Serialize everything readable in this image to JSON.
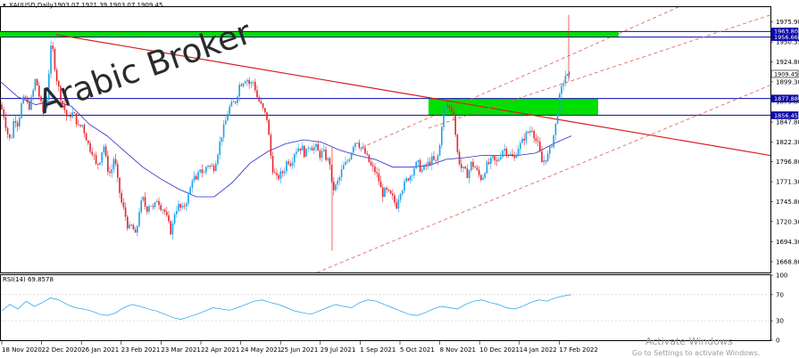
{
  "header": {
    "symbol": "XAUUSD,Daily",
    "ohlc": "1903.07 1921.39 1903.07 1909.45"
  },
  "watermark": "Arabic Broker",
  "activate": {
    "title": "Activate Windows",
    "subtitle": "Go to Settings to activate Windows."
  },
  "rsi_label": "RSI(14) 69.8578",
  "chart_data": {
    "type": "candlestick",
    "symbol": "XAUUSD",
    "timeframe": "Daily",
    "ylim": [
      1655,
      1995
    ],
    "y_ticks": [
      1975.9,
      1950.35,
      1924.8,
      1899.3,
      1873.8,
      1847.8,
      1822.3,
      1796.8,
      1771.3,
      1745.8,
      1720.3,
      1694.3,
      1668.8
    ],
    "x_labels": [
      "18 Nov 2020",
      "22 Dec 2020",
      "26 Jan 2021",
      "23 Feb 2021",
      "23 Mar 2021",
      "22 Apr 2021",
      "24 May 2021",
      "25 Jun 2021",
      "29 Jul 2021",
      "1 Sep 2021",
      "5 Oct 2021",
      "8 Nov 2021",
      "10 Dec 2021",
      "14 Jan 2022",
      "17 Feb 2022"
    ],
    "price_markers": [
      {
        "value": 1963.8,
        "style": "dark"
      },
      {
        "value": 1956.66,
        "style": "dark"
      },
      {
        "value": 1909.45,
        "style": "light"
      },
      {
        "value": 1877.88,
        "style": "dark"
      },
      {
        "value": 1856.45,
        "style": "dark"
      }
    ],
    "horizontal_levels": [
      1963.8,
      1956.66,
      1877.88,
      1856.45
    ],
    "supply_zones": [
      [
        1956.66,
        1963.8
      ],
      [
        1856.45,
        1877.88
      ]
    ],
    "close_path": [
      [
        0,
        1870
      ],
      [
        4,
        1858
      ],
      [
        8,
        1835
      ],
      [
        12,
        1822
      ],
      [
        16,
        1855
      ],
      [
        20,
        1845
      ],
      [
        24,
        1870
      ],
      [
        28,
        1880
      ],
      [
        32,
        1865
      ],
      [
        36,
        1880
      ],
      [
        40,
        1905
      ],
      [
        44,
        1880
      ],
      [
        48,
        1860
      ],
      [
        52,
        1870
      ],
      [
        56,
        1930
      ],
      [
        58,
        1952
      ],
      [
        60,
        1930
      ],
      [
        64,
        1900
      ],
      [
        68,
        1880
      ],
      [
        72,
        1865
      ],
      [
        76,
        1850
      ],
      [
        80,
        1860
      ],
      [
        84,
        1855
      ],
      [
        88,
        1840
      ],
      [
        92,
        1845
      ],
      [
        96,
        1830
      ],
      [
        100,
        1815
      ],
      [
        104,
        1810
      ],
      [
        108,
        1790
      ],
      [
        112,
        1800
      ],
      [
        116,
        1820
      ],
      [
        120,
        1790
      ],
      [
        124,
        1780
      ],
      [
        128,
        1805
      ],
      [
        132,
        1770
      ],
      [
        136,
        1745
      ],
      [
        140,
        1730
      ],
      [
        144,
        1710
      ],
      [
        148,
        1715
      ],
      [
        152,
        1700
      ],
      [
        156,
        1735
      ],
      [
        160,
        1750
      ],
      [
        164,
        1735
      ],
      [
        168,
        1745
      ],
      [
        172,
        1735
      ],
      [
        176,
        1750
      ],
      [
        180,
        1740
      ],
      [
        184,
        1735
      ],
      [
        188,
        1720
      ],
      [
        192,
        1705
      ],
      [
        196,
        1735
      ],
      [
        200,
        1740
      ],
      [
        204,
        1735
      ],
      [
        208,
        1745
      ],
      [
        212,
        1755
      ],
      [
        216,
        1780
      ],
      [
        220,
        1770
      ],
      [
        224,
        1790
      ],
      [
        228,
        1780
      ],
      [
        232,
        1795
      ],
      [
        236,
        1790
      ],
      [
        240,
        1790
      ],
      [
        244,
        1810
      ],
      [
        248,
        1830
      ],
      [
        252,
        1845
      ],
      [
        256,
        1865
      ],
      [
        260,
        1870
      ],
      [
        264,
        1875
      ],
      [
        268,
        1895
      ],
      [
        272,
        1900
      ],
      [
        276,
        1905
      ],
      [
        280,
        1895
      ],
      [
        284,
        1900
      ],
      [
        288,
        1880
      ],
      [
        292,
        1870
      ],
      [
        296,
        1860
      ],
      [
        300,
        1850
      ],
      [
        302,
        1815
      ],
      [
        306,
        1785
      ],
      [
        310,
        1775
      ],
      [
        314,
        1780
      ],
      [
        318,
        1785
      ],
      [
        322,
        1800
      ],
      [
        326,
        1795
      ],
      [
        330,
        1810
      ],
      [
        334,
        1815
      ],
      [
        338,
        1815
      ],
      [
        342,
        1805
      ],
      [
        346,
        1820
      ],
      [
        350,
        1815
      ],
      [
        354,
        1815
      ],
      [
        358,
        1805
      ],
      [
        362,
        1810
      ],
      [
        366,
        1800
      ],
      [
        370,
        1795
      ],
      [
        372,
        1760
      ],
      [
        376,
        1765
      ],
      [
        380,
        1775
      ],
      [
        384,
        1790
      ],
      [
        388,
        1795
      ],
      [
        392,
        1805
      ],
      [
        396,
        1820
      ],
      [
        400,
        1825
      ],
      [
        404,
        1815
      ],
      [
        408,
        1810
      ],
      [
        412,
        1800
      ],
      [
        416,
        1790
      ],
      [
        420,
        1785
      ],
      [
        424,
        1775
      ],
      [
        428,
        1755
      ],
      [
        432,
        1760
      ],
      [
        436,
        1755
      ],
      [
        440,
        1750
      ],
      [
        444,
        1740
      ],
      [
        448,
        1760
      ],
      [
        452,
        1765
      ],
      [
        456,
        1775
      ],
      [
        460,
        1780
      ],
      [
        464,
        1790
      ],
      [
        468,
        1795
      ],
      [
        472,
        1785
      ],
      [
        476,
        1790
      ],
      [
        480,
        1795
      ],
      [
        484,
        1800
      ],
      [
        488,
        1795
      ],
      [
        492,
        1810
      ],
      [
        496,
        1860
      ],
      [
        500,
        1870
      ],
      [
        504,
        1865
      ],
      [
        508,
        1860
      ],
      [
        512,
        1810
      ],
      [
        516,
        1790
      ],
      [
        520,
        1785
      ],
      [
        524,
        1780
      ],
      [
        528,
        1795
      ],
      [
        532,
        1790
      ],
      [
        536,
        1780
      ],
      [
        540,
        1775
      ],
      [
        544,
        1790
      ],
      [
        548,
        1795
      ],
      [
        552,
        1800
      ],
      [
        556,
        1795
      ],
      [
        560,
        1805
      ],
      [
        564,
        1815
      ],
      [
        568,
        1810
      ],
      [
        572,
        1805
      ],
      [
        576,
        1800
      ],
      [
        580,
        1815
      ],
      [
        584,
        1820
      ],
      [
        588,
        1830
      ],
      [
        592,
        1835
      ],
      [
        596,
        1840
      ],
      [
        600,
        1825
      ],
      [
        604,
        1815
      ],
      [
        606,
        1795
      ],
      [
        610,
        1800
      ],
      [
        614,
        1805
      ],
      [
        618,
        1820
      ],
      [
        622,
        1840
      ],
      [
        624,
        1860
      ],
      [
        626,
        1875
      ],
      [
        630,
        1895
      ],
      [
        634,
        1910
      ],
      [
        636,
        1905
      ],
      [
        640,
        1909
      ]
    ],
    "ma_path": [
      [
        0,
        1900
      ],
      [
        20,
        1880
      ],
      [
        40,
        1870
      ],
      [
        60,
        1875
      ],
      [
        80,
        1868
      ],
      [
        100,
        1845
      ],
      [
        120,
        1830
      ],
      [
        140,
        1810
      ],
      [
        160,
        1790
      ],
      [
        180,
        1775
      ],
      [
        200,
        1762
      ],
      [
        220,
        1752
      ],
      [
        240,
        1752
      ],
      [
        260,
        1770
      ],
      [
        280,
        1795
      ],
      [
        300,
        1810
      ],
      [
        320,
        1820
      ],
      [
        340,
        1825
      ],
      [
        360,
        1822
      ],
      [
        380,
        1812
      ],
      [
        400,
        1805
      ],
      [
        420,
        1800
      ],
      [
        440,
        1790
      ],
      [
        460,
        1790
      ],
      [
        480,
        1792
      ],
      [
        500,
        1800
      ],
      [
        520,
        1802
      ],
      [
        540,
        1805
      ],
      [
        560,
        1805
      ],
      [
        580,
        1805
      ],
      [
        600,
        1808
      ],
      [
        620,
        1820
      ],
      [
        640,
        1830
      ]
    ],
    "trendlines": [
      {
        "from": [
          62,
          1960
        ],
        "to": [
          863,
          1805
        ],
        "color": "#d61f1f",
        "style": "solid"
      },
      {
        "from": [
          355,
          1655
        ],
        "to": [
          863,
          1895
        ],
        "color": "#e05a5a",
        "style": "dashed"
      },
      {
        "from": [
          405,
          1815
        ],
        "to": [
          760,
          1995
        ],
        "color": "#e05a5a",
        "style": "dashed"
      },
      {
        "from": [
          480,
          1840
        ],
        "to": [
          863,
          1985
        ],
        "color": "#e05a5a",
        "style": "dashed"
      }
    ],
    "rsi": {
      "label": "RSI(14) 69.8578",
      "ylim": [
        0,
        100
      ],
      "y_ticks": [
        100,
        70,
        30,
        0
      ],
      "last": 69.8578,
      "values": [
        45,
        55,
        48,
        60,
        52,
        58,
        65,
        62,
        55,
        50,
        48,
        45,
        40,
        38,
        42,
        50,
        55,
        52,
        48,
        45,
        40,
        35,
        32,
        36,
        40,
        45,
        50,
        48,
        46,
        50,
        55,
        60,
        62,
        58,
        55,
        50,
        45,
        42,
        40,
        45,
        50,
        55,
        52,
        50,
        58,
        62,
        60,
        55,
        50,
        45,
        40,
        38,
        42,
        48,
        52,
        50,
        48,
        55,
        60,
        62,
        58,
        55,
        50,
        48,
        52,
        58,
        62,
        60,
        65,
        68,
        70
      ]
    }
  }
}
